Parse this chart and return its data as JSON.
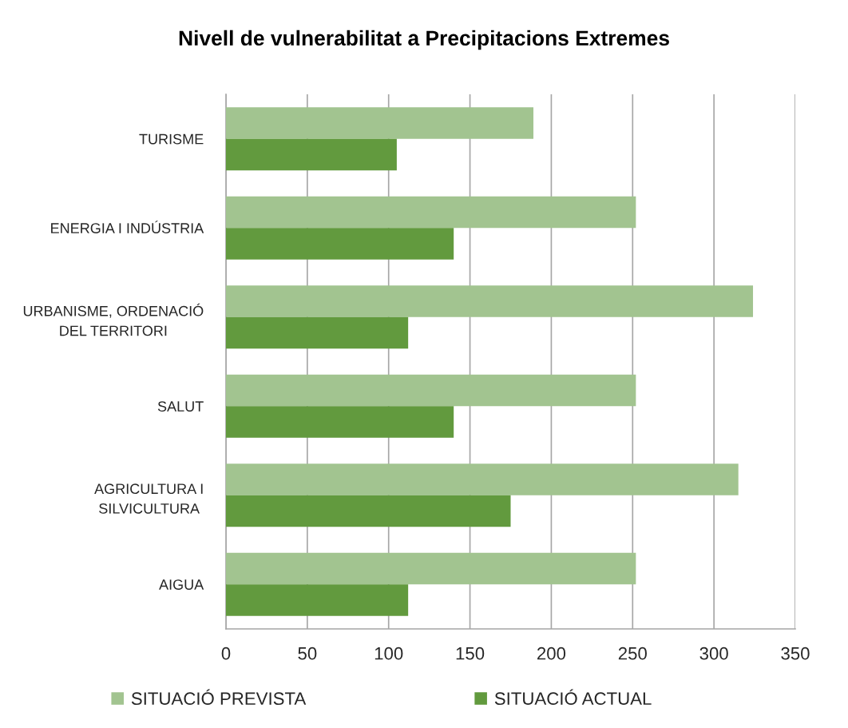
{
  "chart_data": {
    "type": "bar",
    "orientation": "horizontal",
    "title": "Nivell de vulnerabilitat a Precipitacions Extremes",
    "categories": [
      "TURISME",
      "ENERGIA I INDÚSTRIA",
      "URBANISME, ORDENACIÓ DEL TERRITORI",
      "SALUT",
      "AGRICULTURA I SILVICULTURA",
      "AIGUA"
    ],
    "series": [
      {
        "name": "SITUACIÓ PREVISTA",
        "color": "#a2c490",
        "values": [
          189,
          252,
          324,
          252,
          315,
          252
        ]
      },
      {
        "name": "SITUACIÓ ACTUAL",
        "color": "#629a3e",
        "values": [
          105,
          140,
          112,
          140,
          175,
          112
        ]
      }
    ],
    "xlim": [
      0,
      350
    ],
    "xticks": [
      0,
      50,
      100,
      150,
      200,
      250,
      300,
      350
    ],
    "grid": "x",
    "legend": "bottom"
  }
}
